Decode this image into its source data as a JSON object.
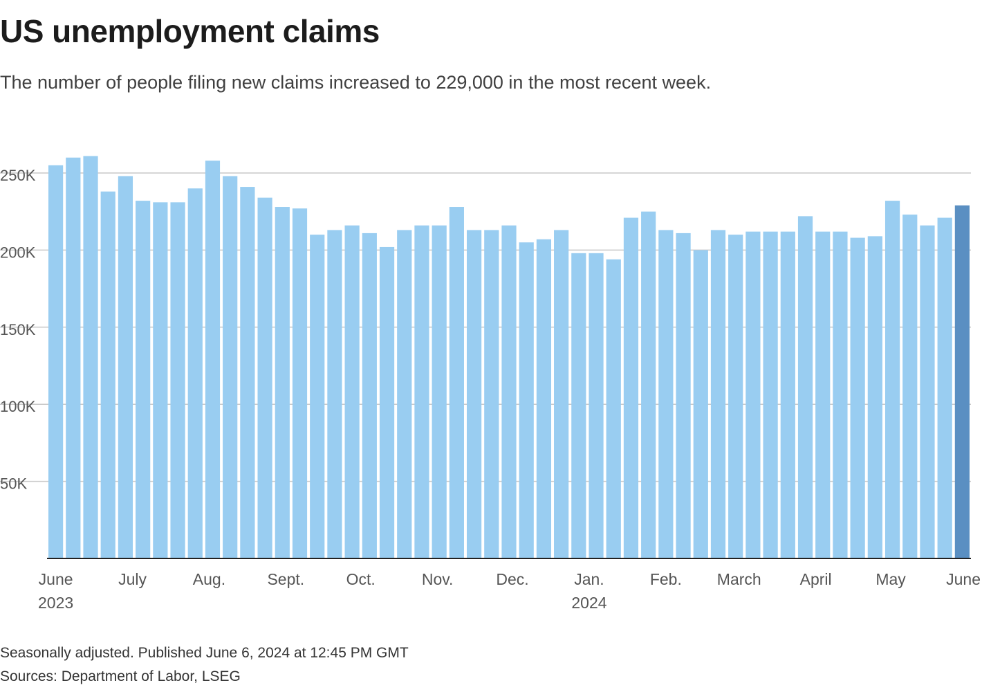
{
  "header": {
    "title": "US unemployment claims",
    "subtitle": "The number of people filing new claims increased to 229,000 in the most recent week."
  },
  "footer": {
    "note": "Seasonally adjusted. Published June 6, 2024 at 12:45 PM GMT",
    "sources": "Sources: Department of Labor, LSEG"
  },
  "colors": {
    "bar": "#99cdf1",
    "highlight_bar": "#5a8fc2",
    "grid": "#c8c8c8",
    "axis": "#222222"
  },
  "chart_data": {
    "type": "bar",
    "title": "US unemployment claims",
    "subtitle": "The number of people filing new claims increased to 229,000 in the most recent week.",
    "xlabel": "",
    "ylabel": "",
    "ylim": [
      0,
      262000
    ],
    "grid": true,
    "yticks": [
      {
        "value": 50000,
        "label": "50K"
      },
      {
        "value": 100000,
        "label": "100K"
      },
      {
        "value": 150000,
        "label": "150K"
      },
      {
        "value": 200000,
        "label": "200K"
      },
      {
        "value": 250000,
        "label": "250K"
      }
    ],
    "xticks": [
      {
        "bar_index": 0,
        "label": "June",
        "year": "2023"
      },
      {
        "bar_index": 4.4,
        "label": "July"
      },
      {
        "bar_index": 8.8,
        "label": "Aug."
      },
      {
        "bar_index": 13.2,
        "label": "Sept."
      },
      {
        "bar_index": 17.5,
        "label": "Oct."
      },
      {
        "bar_index": 21.9,
        "label": "Nov."
      },
      {
        "bar_index": 26.2,
        "label": "Dec."
      },
      {
        "bar_index": 30.6,
        "label": "Jan.",
        "year": "2024"
      },
      {
        "bar_index": 35,
        "label": "Feb."
      },
      {
        "bar_index": 39.2,
        "label": "March"
      },
      {
        "bar_index": 43.6,
        "label": "April"
      },
      {
        "bar_index": 47.9,
        "label": "May"
      },
      {
        "bar_index": 52.4,
        "label": "June"
      }
    ],
    "series": [
      {
        "values": [
          255000,
          260000,
          261000,
          238000,
          248000,
          232000,
          231000,
          231000,
          240000,
          258000,
          248000,
          241000,
          234000,
          228000,
          227000,
          210000,
          213000,
          216000,
          211000,
          202000,
          213000,
          216000,
          216000,
          228000,
          213000,
          213000,
          216000,
          205000,
          207000,
          213000,
          198000,
          198000,
          194000,
          221000,
          225000,
          213000,
          211000,
          200000,
          213000,
          210000,
          212000,
          212000,
          212000,
          222000,
          212000,
          212000,
          208000,
          209000,
          232000,
          223000,
          216000,
          221000,
          229000
        ],
        "highlight_last": true
      }
    ]
  }
}
